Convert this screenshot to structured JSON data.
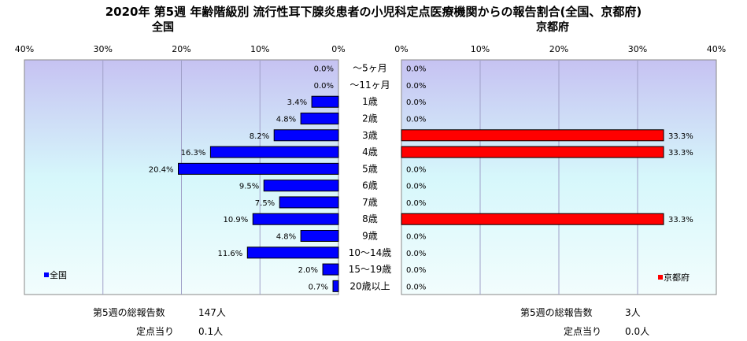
{
  "title": "2020年 第5週 年齢階級別 流行性耳下腺炎患者の小児科定点医療機関からの報告割合(全国、京都府)",
  "panels": {
    "left_title": "全国",
    "right_title": "京都府"
  },
  "chart_data": [
    {
      "type": "bar",
      "orientation": "horizontal",
      "direction": "right-to-left",
      "title": "全国",
      "categories": [
        "～5ヶ月",
        "～11ヶ月",
        "1歳",
        "2歳",
        "3歳",
        "4歳",
        "5歳",
        "6歳",
        "7歳",
        "8歳",
        "9歳",
        "10～14歳",
        "15～19歳",
        "20歳以上"
      ],
      "series": [
        {
          "name": "全国",
          "color": "#0000ff",
          "values": [
            0.0,
            0.0,
            3.4,
            4.8,
            8.2,
            16.3,
            20.4,
            9.5,
            7.5,
            10.9,
            4.8,
            11.6,
            2.0,
            0.7
          ],
          "labels": [
            "0.0%",
            "0.0%",
            "3.4%",
            "4.8%",
            "8.2%",
            "16.3%",
            "20.4%",
            "9.5%",
            "7.5%",
            "10.9%",
            "4.8%",
            "11.6%",
            "2.0%",
            "0.7%"
          ]
        }
      ],
      "xlim": [
        0,
        40
      ],
      "ticks": [
        "40%",
        "30%",
        "20%",
        "10%",
        "0%"
      ],
      "grid": true,
      "legend": "bottom-left"
    },
    {
      "type": "bar",
      "orientation": "horizontal",
      "direction": "left-to-right",
      "title": "京都府",
      "categories": [
        "～5ヶ月",
        "～11ヶ月",
        "1歳",
        "2歳",
        "3歳",
        "4歳",
        "5歳",
        "6歳",
        "7歳",
        "8歳",
        "9歳",
        "10～14歳",
        "15～19歳",
        "20歳以上"
      ],
      "series": [
        {
          "name": "京都府",
          "color": "#ff0000",
          "values": [
            0.0,
            0.0,
            0.0,
            0.0,
            33.3,
            33.3,
            0.0,
            0.0,
            0.0,
            33.3,
            0.0,
            0.0,
            0.0,
            0.0
          ],
          "labels": [
            "0.0%",
            "0.0%",
            "0.0%",
            "0.0%",
            "33.3%",
            "33.3%",
            "0.0%",
            "0.0%",
            "0.0%",
            "33.3%",
            "0.0%",
            "0.0%",
            "0.0%",
            "0.0%"
          ]
        }
      ],
      "xlim": [
        0,
        40
      ],
      "ticks": [
        "0%",
        "10%",
        "20%",
        "30%",
        "40%"
      ],
      "grid": true,
      "legend": "bottom-right"
    }
  ],
  "summary": {
    "left": {
      "total_label": "第5週の総報告数",
      "total_value": "147人",
      "per_site_label": "定点当り",
      "per_site_value": "0.1人"
    },
    "right": {
      "total_label": "第5週の総報告数",
      "total_value": "3人",
      "per_site_label": "定点当り",
      "per_site_value": "0.0人"
    }
  }
}
